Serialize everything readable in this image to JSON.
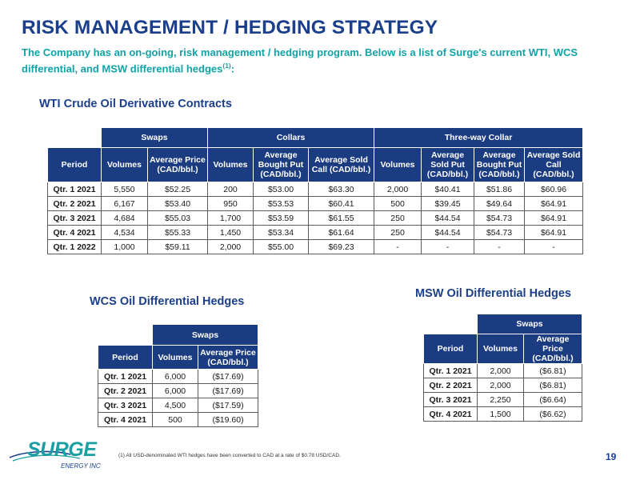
{
  "title": "RISK MANAGEMENT / HEDGING STRATEGY",
  "intro": {
    "text": "The Company has an on-going, risk management / hedging program. Below is a list of Surge's current WTI, WCS differential, and MSW differential hedges",
    "footnote_ref": "(1)",
    "suffix": ":"
  },
  "wti": {
    "title": "WTI Crude Oil Derivative Contracts",
    "groups": [
      "Swaps",
      "Collars",
      "Three-way Collar"
    ],
    "headers": [
      "Period",
      "Volumes",
      "Average Price (CAD/bbl.)",
      "Volumes",
      "Average Bought Put (CAD/bbl.)",
      "Average Sold Call (CAD/bbl.)",
      "Volumes",
      "Average Sold Put (CAD/bbl.)",
      "Average Bought Put (CAD/bbl.)",
      "Average Sold Call (CAD/bbl.)"
    ],
    "rows": [
      [
        "Qtr. 1 2021",
        "5,550",
        "$52.25",
        "200",
        "$53.00",
        "$63.30",
        "2,000",
        "$40.41",
        "$51.86",
        "$60.96"
      ],
      [
        "Qtr. 2 2021",
        "6,167",
        "$53.40",
        "950",
        "$53.53",
        "$60.41",
        "500",
        "$39.45",
        "$49.64",
        "$64.91"
      ],
      [
        "Qtr. 3 2021",
        "4,684",
        "$55.03",
        "1,700",
        "$53.59",
        "$61.55",
        "250",
        "$44.54",
        "$54.73",
        "$64.91"
      ],
      [
        "Qtr. 4 2021",
        "4,534",
        "$55.33",
        "1,450",
        "$53.34",
        "$61.64",
        "250",
        "$44.54",
        "$54.73",
        "$64.91"
      ],
      [
        "Qtr. 1 2022",
        "1,000",
        "$59.11",
        "2,000",
        "$55.00",
        "$69.23",
        "-",
        "-",
        "-",
        "-"
      ]
    ]
  },
  "wcs": {
    "title": "WCS Oil Differential Hedges",
    "group": "Swaps",
    "headers": [
      "Period",
      "Volumes",
      "Average Price (CAD/bbl.)"
    ],
    "rows": [
      [
        "Qtr. 1 2021",
        "6,000",
        "($17.69)"
      ],
      [
        "Qtr. 2 2021",
        "6,000",
        "($17.69)"
      ],
      [
        "Qtr. 3 2021",
        "4,500",
        "($17.59)"
      ],
      [
        "Qtr. 4 2021",
        "500",
        "($19.60)"
      ]
    ]
  },
  "msw": {
    "title": "MSW Oil Differential Hedges",
    "group": "Swaps",
    "headers": [
      "Period",
      "Volumes",
      "Average Price (CAD/bbl.)"
    ],
    "rows": [
      [
        "Qtr. 1 2021",
        "2,000",
        "($6.81)"
      ],
      [
        "Qtr. 2 2021",
        "2,000",
        "($6.81)"
      ],
      [
        "Qtr. 3 2021",
        "2,250",
        "($6.64)"
      ],
      [
        "Qtr. 4 2021",
        "1,500",
        "($6.62)"
      ]
    ]
  },
  "footnote": "(1)     All USD-denominated WTI hedges have been converted to CAD at a rate of $0.78 USD/CAD.",
  "page_number": "19",
  "logo": {
    "name": "SURGE",
    "tagline": "ENERGY INC",
    "colors": {
      "primary": "#1a9fa3",
      "secondary": "#1b3f8b"
    }
  },
  "colors": {
    "title": "#1b3f8b",
    "intro": "#10a3a8",
    "table_header_bg": "#1c3c82"
  }
}
